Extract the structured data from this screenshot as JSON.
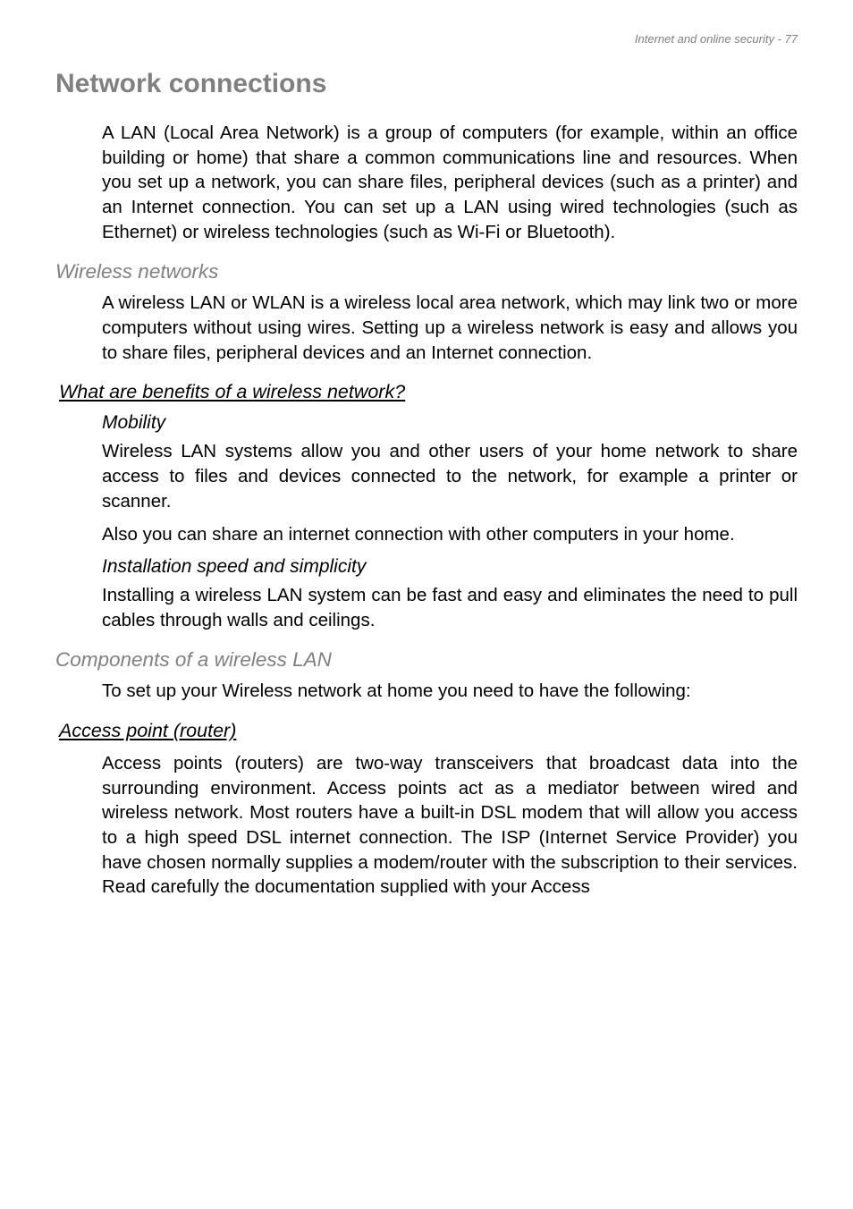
{
  "header": "Internet and online security - 77",
  "h1": "Network connections",
  "p1": "A LAN (Local Area Network) is a group of computers (for example, within an office building or home) that share a common communications line and resources. When you set up a network, you can share files, peripheral devices (such as a printer) and an Internet connection. You can set up a LAN using wired technologies (such as Ethernet) or wireless technologies (such as Wi-Fi or Bluetooth).",
  "h2a": "Wireless networks",
  "p2": "A wireless LAN or WLAN is a wireless local area network, which may link two or more computers without using wires. Setting up a wireless network is easy and allows you to share files, peripheral devices and an Internet connection.",
  "h3a": "What are benefits of a wireless network?",
  "h4a": "Mobility",
  "p3": "Wireless LAN systems allow you and other users of your home network to share access to files and devices connected to the network, for example a printer or scanner.",
  "p4": "Also you can share an internet connection with other computers in your home.",
  "h4b": "Installation speed and simplicity",
  "p5": "Installing a wireless LAN system can be fast and easy and eliminates the need to pull cables through walls and ceilings.",
  "h2b": "Components of a wireless LAN",
  "p6": "To set up your Wireless network at home you need to have the following:",
  "h3b": "Access point (router)",
  "p7": "Access points (routers) are two-way transceivers that broadcast data into the surrounding environment. Access points act as a mediator between wired and wireless network. Most routers have a built-in DSL modem that will allow you access to a high speed DSL internet connection. The ISP (Internet Service Provider) you have chosen normally supplies a modem/router with the subscription to their services. Read carefully the documentation supplied with your Access"
}
